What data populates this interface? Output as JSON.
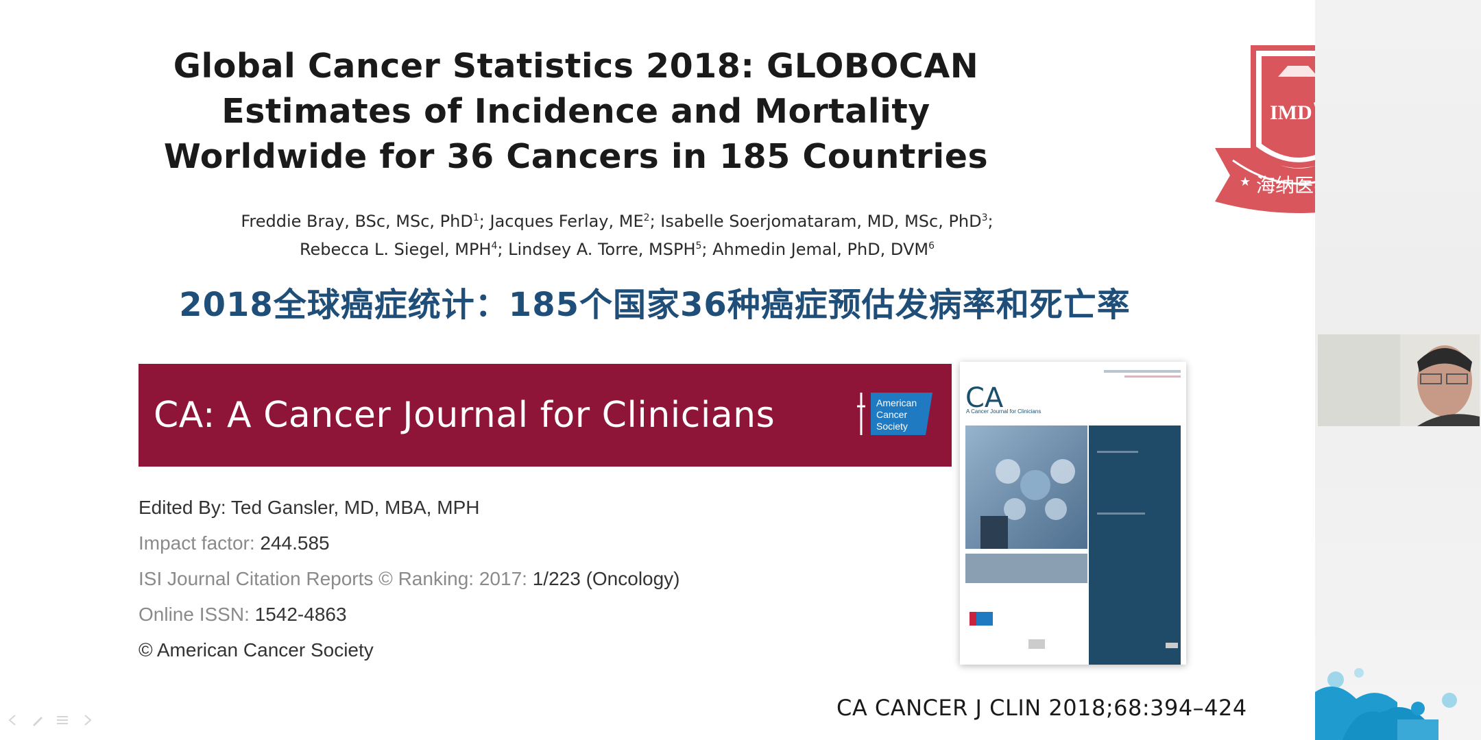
{
  "slide": {
    "paper_title": "Global Cancer Statistics 2018: GLOBOCAN Estimates of Incidence and Mortality Worldwide for 36 Cancers in 185 Countries",
    "authors": [
      {
        "name": "Freddie Bray, BSc, MSc, PhD",
        "sup": "1"
      },
      {
        "name": "Jacques Ferlay, ME",
        "sup": "2"
      },
      {
        "name": "Isabelle Soerjomataram, MD, MSc, PhD",
        "sup": "3"
      },
      {
        "name": "Rebecca L. Siegel, MPH",
        "sup": "4"
      },
      {
        "name": "Lindsey A. Torre, MSPH",
        "sup": "5"
      },
      {
        "name": "Ahmedin Jemal, PhD, DVM",
        "sup": "6"
      }
    ],
    "chinese_title": "2018全球癌症统计：185个国家36种癌症预估发病率和死亡率",
    "journal_banner": "CA: A Cancer Journal for Clinicians",
    "journal_banner_color": "#8e1538",
    "acs_logo_text": [
      "American",
      "Cancer",
      "Society"
    ],
    "journal_info": {
      "edited_by": {
        "label": "Edited By:",
        "value": "Ted Gansler, MD, MBA, MPH"
      },
      "impact_factor": {
        "label": "Impact factor:",
        "value": "244.585"
      },
      "ranking": {
        "label": "ISI Journal Citation Reports © Ranking: 2017:",
        "value": "1/223 (Oncology)"
      },
      "issn": {
        "label": "Online ISSN:",
        "value": "1542-4863"
      },
      "copyright": "© American Cancer Society"
    },
    "cover": {
      "ca": "CA",
      "subtitle": "A Cancer Journal for Clinicians"
    },
    "citation": "CA CANCER J CLIN 2018;68:394–424",
    "title_color": "#1f4e79"
  },
  "logo": {
    "text": "IMD",
    "chinese": "海纳医学",
    "color": "#d9565c"
  },
  "icons": [
    "imd-shield-logo-icon",
    "acs-sword-logo-icon",
    "webcam-speaker-icon"
  ]
}
